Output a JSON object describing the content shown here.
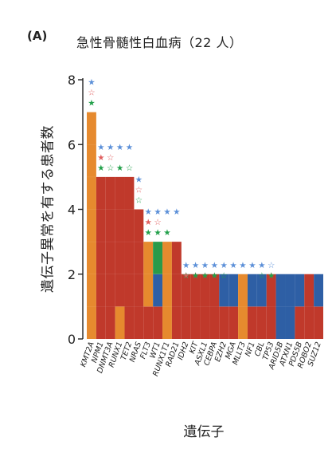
{
  "panel_label": "(A)",
  "colors": {
    "red": "#c0392b",
    "orange": "#e68a2e",
    "blue": "#2e5fa5",
    "green": "#2a9a4a",
    "star_blue": "#5b8fd8",
    "star_red": "#e06060",
    "star_green": "#22a04a"
  },
  "chart_data": {
    "type": "bar",
    "title": "急性骨髄性白血病（22 人）",
    "xlabel": "遺伝子",
    "ylabel": "遺伝子異常を有する患者数",
    "ylim": [
      0,
      8
    ],
    "yticks": [
      "0",
      "2",
      "4",
      "6",
      "8"
    ],
    "categories": [
      "KMT2A",
      "NPM1",
      "DNMT3A",
      "RUNX1",
      "TET2",
      "NRAS",
      "FLT3",
      "WT1",
      "RUNX1T1",
      "RAD21",
      "IDH2",
      "KIT",
      "ASXL1",
      "CEBPA",
      "EZH2",
      "MGA",
      "MLLT3",
      "NF1",
      "CBL",
      "TP53",
      "ARID5B",
      "ATXN1",
      "PDS5B",
      "ROBO2",
      "SUZ12"
    ],
    "columns": [
      {
        "gene": "KMT2A",
        "segments": [
          {
            "c": "orange",
            "n": 7
          }
        ],
        "stars": [
          {
            "c": "star_blue",
            "filled": [
              1
            ]
          },
          {
            "c": "star_red",
            "filled": [
              0
            ]
          },
          {
            "c": "star_green",
            "filled": [
              1
            ]
          }
        ]
      },
      {
        "gene": "NPM1",
        "segments": [
          {
            "c": "red",
            "n": 5
          }
        ],
        "stars": [
          {
            "c": "star_blue",
            "filled": [
              1,
              1,
              1,
              1
            ]
          },
          {
            "c": "star_red",
            "filled": [
              1,
              0
            ]
          },
          {
            "c": "star_green",
            "filled": [
              1,
              0,
              1,
              0
            ]
          }
        ]
      },
      {
        "gene": "DNMT3A",
        "segments": [
          {
            "c": "red",
            "n": 5
          }
        ]
      },
      {
        "gene": "RUNX1",
        "segments": [
          {
            "c": "orange",
            "n": 1
          },
          {
            "c": "red",
            "n": 4
          }
        ]
      },
      {
        "gene": "TET2",
        "segments": [
          {
            "c": "red",
            "n": 5
          }
        ]
      },
      {
        "gene": "NRAS",
        "segments": [
          {
            "c": "red",
            "n": 4
          }
        ],
        "stars": [
          {
            "c": "star_blue",
            "filled": [
              1
            ]
          },
          {
            "c": "star_red",
            "filled": [
              0
            ]
          },
          {
            "c": "star_green",
            "filled": [
              0
            ]
          }
        ]
      },
      {
        "gene": "FLT3",
        "segments": [
          {
            "c": "red",
            "n": 1
          },
          {
            "c": "orange",
            "n": 2
          }
        ],
        "stars": [
          {
            "c": "star_blue",
            "filled": [
              1,
              1,
              1,
              1
            ]
          },
          {
            "c": "star_red",
            "filled": [
              1,
              0
            ]
          },
          {
            "c": "star_green",
            "filled": [
              1,
              1,
              1
            ]
          }
        ]
      },
      {
        "gene": "WT1",
        "segments": [
          {
            "c": "red",
            "n": 1
          },
          {
            "c": "blue",
            "n": 1
          },
          {
            "c": "green",
            "n": 1
          }
        ]
      },
      {
        "gene": "RUNX1T1",
        "segments": [
          {
            "c": "orange",
            "n": 3
          }
        ]
      },
      {
        "gene": "RAD21",
        "segments": [
          {
            "c": "red",
            "n": 3
          }
        ]
      },
      {
        "gene": "IDH2",
        "segments": [
          {
            "c": "red",
            "n": 2
          }
        ],
        "stars": [
          {
            "c": "star_blue",
            "filled": [
              1,
              1,
              1,
              1,
              1,
              1,
              1,
              1,
              1,
              0
            ]
          },
          {
            "c": "star_red",
            "filled": [
              1,
              0
            ],
            "offset": 0
          },
          {
            "c": "star_green",
            "filled": [
              0,
              1,
              1,
              1,
              0
            ],
            "offset": 0
          },
          {
            "c": "star_red",
            "filled": [
              0
            ],
            "offset": 9
          },
          {
            "c": "star_green",
            "filled": [
              0,
              1
            ],
            "offset": 8
          }
        ]
      },
      {
        "gene": "KIT",
        "segments": [
          {
            "c": "red",
            "n": 2
          }
        ]
      },
      {
        "gene": "ASXL1",
        "segments": [
          {
            "c": "red",
            "n": 2
          }
        ]
      },
      {
        "gene": "CEBPA",
        "segments": [
          {
            "c": "red",
            "n": 2
          }
        ]
      },
      {
        "gene": "EZH2",
        "segments": [
          {
            "c": "red",
            "n": 1
          },
          {
            "c": "blue",
            "n": 1
          }
        ]
      },
      {
        "gene": "MGA",
        "segments": [
          {
            "c": "red",
            "n": 1
          },
          {
            "c": "blue",
            "n": 1
          }
        ]
      },
      {
        "gene": "MLLT3",
        "segments": [
          {
            "c": "orange",
            "n": 2
          }
        ]
      },
      {
        "gene": "NF1",
        "segments": [
          {
            "c": "red",
            "n": 1
          },
          {
            "c": "blue",
            "n": 1
          }
        ]
      },
      {
        "gene": "CBL",
        "segments": [
          {
            "c": "red",
            "n": 1
          },
          {
            "c": "blue",
            "n": 1
          }
        ]
      },
      {
        "gene": "TP53",
        "segments": [
          {
            "c": "red",
            "n": 2
          }
        ]
      },
      {
        "gene": "ARID5B",
        "segments": [
          {
            "c": "blue",
            "n": 2
          }
        ]
      },
      {
        "gene": "ATXN1",
        "segments": [
          {
            "c": "blue",
            "n": 2
          }
        ]
      },
      {
        "gene": "PDS5B",
        "segments": [
          {
            "c": "red",
            "n": 1
          },
          {
            "c": "blue",
            "n": 1
          }
        ]
      },
      {
        "gene": "ROBO2",
        "segments": [
          {
            "c": "red",
            "n": 2
          }
        ]
      },
      {
        "gene": "SUZ12",
        "segments": [
          {
            "c": "red",
            "n": 1
          },
          {
            "c": "blue",
            "n": 1
          }
        ]
      }
    ]
  }
}
